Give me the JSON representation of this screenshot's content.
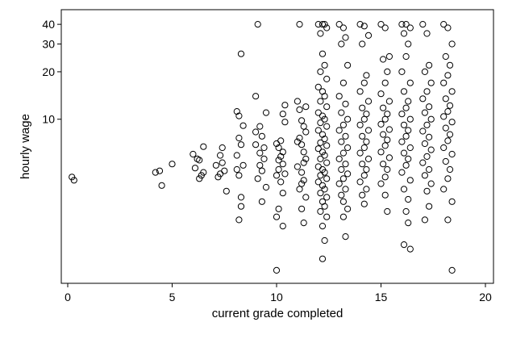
{
  "chart_data": {
    "type": "scatter",
    "xlabel": "current grade completed",
    "ylabel": "hourly wage",
    "xlim": [
      0,
      20
    ],
    "ylim": [
      1.0,
      42
    ],
    "y_scale": "log",
    "x_ticks": [
      0,
      5,
      10,
      15,
      20
    ],
    "y_ticks": [
      10,
      20,
      30,
      40
    ],
    "grid": false,
    "legend": "none",
    "marker": "hollow-circle",
    "colors": {
      "marker": "#000000",
      "background": "#ffffff",
      "axis": "#000000"
    },
    "points": [
      [
        0.2,
        4.3
      ],
      [
        0.3,
        4.1
      ],
      [
        4.2,
        4.6
      ],
      [
        4.4,
        4.7
      ],
      [
        4.5,
        3.8
      ],
      [
        5.0,
        5.2
      ],
      [
        6.0,
        6.0
      ],
      [
        6.1,
        4.9
      ],
      [
        6.2,
        5.6
      ],
      [
        6.3,
        4.2
      ],
      [
        6.4,
        4.4
      ],
      [
        6.5,
        6.7
      ],
      [
        6.3,
        5.5
      ],
      [
        6.5,
        4.6
      ],
      [
        7.1,
        5.1
      ],
      [
        7.2,
        4.3
      ],
      [
        7.3,
        5.9
      ],
      [
        7.4,
        6.6
      ],
      [
        7.5,
        4.7
      ],
      [
        7.6,
        3.5
      ],
      [
        7.4,
        5.3
      ],
      [
        7.3,
        4.5
      ],
      [
        8.1,
        11.2
      ],
      [
        8.2,
        10.5
      ],
      [
        8.3,
        26.0
      ],
      [
        8.2,
        7.6
      ],
      [
        8.3,
        6.9
      ],
      [
        8.1,
        5.9
      ],
      [
        8.4,
        5.1
      ],
      [
        8.2,
        4.4
      ],
      [
        8.3,
        3.2
      ],
      [
        8.2,
        2.3
      ],
      [
        8.3,
        2.8
      ],
      [
        8.4,
        9.1
      ],
      [
        8.1,
        4.8
      ],
      [
        9.0,
        14.0
      ],
      [
        9.1,
        40.0
      ],
      [
        9.2,
        9.0
      ],
      [
        9.3,
        7.8
      ],
      [
        9.0,
        6.9
      ],
      [
        9.2,
        6.1
      ],
      [
        9.4,
        5.6
      ],
      [
        9.3,
        4.7
      ],
      [
        9.1,
        4.2
      ],
      [
        9.5,
        3.7
      ],
      [
        9.3,
        3.0
      ],
      [
        9.2,
        5.1
      ],
      [
        9.4,
        6.6
      ],
      [
        9.0,
        8.3
      ],
      [
        9.5,
        11.0
      ],
      [
        10.0,
        7.0
      ],
      [
        10.1,
        6.6
      ],
      [
        10.2,
        5.8
      ],
      [
        10.3,
        5.2
      ],
      [
        10.1,
        4.8
      ],
      [
        10.0,
        4.4
      ],
      [
        10.2,
        4.0
      ],
      [
        10.3,
        3.4
      ],
      [
        10.1,
        2.7
      ],
      [
        10.0,
        1.1
      ],
      [
        10.4,
        9.6
      ],
      [
        10.3,
        10.8
      ],
      [
        10.4,
        12.3
      ],
      [
        10.2,
        7.3
      ],
      [
        10.4,
        4.5
      ],
      [
        10.1,
        5.5
      ],
      [
        10.3,
        6.2
      ],
      [
        10.0,
        2.4
      ],
      [
        10.3,
        2.1
      ],
      [
        11.0,
        13.0
      ],
      [
        11.1,
        11.5
      ],
      [
        11.2,
        9.8
      ],
      [
        11.3,
        9.0
      ],
      [
        11.4,
        8.3
      ],
      [
        11.1,
        7.6
      ],
      [
        11.2,
        6.9
      ],
      [
        11.3,
        6.2
      ],
      [
        11.4,
        5.6
      ],
      [
        11.0,
        5.0
      ],
      [
        11.2,
        4.6
      ],
      [
        11.3,
        4.1
      ],
      [
        11.1,
        3.6
      ],
      [
        11.4,
        3.2
      ],
      [
        11.2,
        2.7
      ],
      [
        11.3,
        2.2
      ],
      [
        11.1,
        40.0
      ],
      [
        11.4,
        12.0
      ],
      [
        11.0,
        7.2
      ],
      [
        11.3,
        5.3
      ],
      [
        11.2,
        3.9
      ],
      [
        12.0,
        40.0
      ],
      [
        12.2,
        40.0
      ],
      [
        12.3,
        40.0
      ],
      [
        12.1,
        35.0
      ],
      [
        12.4,
        38.0
      ],
      [
        12.2,
        26.0
      ],
      [
        12.3,
        22.0
      ],
      [
        12.1,
        20.0
      ],
      [
        12.4,
        18.0
      ],
      [
        12.0,
        16.0
      ],
      [
        12.2,
        15.0
      ],
      [
        12.3,
        14.0
      ],
      [
        12.1,
        13.0
      ],
      [
        12.4,
        12.0
      ],
      [
        12.0,
        11.0
      ],
      [
        12.2,
        10.5
      ],
      [
        12.3,
        10.0
      ],
      [
        12.1,
        9.5
      ],
      [
        12.4,
        9.0
      ],
      [
        12.0,
        8.5
      ],
      [
        12.2,
        8.0
      ],
      [
        12.3,
        7.5
      ],
      [
        12.1,
        7.1
      ],
      [
        12.4,
        6.8
      ],
      [
        12.0,
        6.5
      ],
      [
        12.2,
        6.2
      ],
      [
        12.3,
        5.9
      ],
      [
        12.1,
        5.6
      ],
      [
        12.4,
        5.3
      ],
      [
        12.0,
        5.0
      ],
      [
        12.2,
        4.8
      ],
      [
        12.3,
        4.6
      ],
      [
        12.1,
        4.4
      ],
      [
        12.4,
        4.2
      ],
      [
        12.0,
        4.0
      ],
      [
        12.2,
        3.8
      ],
      [
        12.3,
        3.6
      ],
      [
        12.1,
        3.4
      ],
      [
        12.4,
        3.2
      ],
      [
        12.2,
        3.0
      ],
      [
        12.3,
        2.8
      ],
      [
        12.1,
        2.6
      ],
      [
        12.4,
        2.4
      ],
      [
        12.2,
        2.1
      ],
      [
        12.3,
        1.7
      ],
      [
        12.2,
        1.3
      ],
      [
        13.0,
        40.0
      ],
      [
        13.2,
        38.0
      ],
      [
        13.1,
        30.0
      ],
      [
        13.3,
        33.0
      ],
      [
        13.4,
        22.0
      ],
      [
        13.2,
        17.0
      ],
      [
        13.0,
        14.0
      ],
      [
        13.3,
        12.5
      ],
      [
        13.1,
        11.0
      ],
      [
        13.4,
        10.0
      ],
      [
        13.2,
        9.2
      ],
      [
        13.0,
        8.5
      ],
      [
        13.3,
        7.8
      ],
      [
        13.1,
        7.2
      ],
      [
        13.4,
        6.6
      ],
      [
        13.2,
        6.1
      ],
      [
        13.0,
        5.6
      ],
      [
        13.3,
        5.2
      ],
      [
        13.1,
        4.8
      ],
      [
        13.4,
        4.5
      ],
      [
        13.2,
        4.2
      ],
      [
        13.0,
        3.9
      ],
      [
        13.3,
        3.6
      ],
      [
        13.1,
        3.3
      ],
      [
        13.2,
        3.0
      ],
      [
        13.4,
        2.7
      ],
      [
        13.2,
        2.4
      ],
      [
        13.3,
        1.8
      ],
      [
        14.0,
        40.0
      ],
      [
        14.2,
        39.0
      ],
      [
        14.4,
        34.0
      ],
      [
        14.1,
        30.0
      ],
      [
        14.3,
        19.0
      ],
      [
        14.2,
        17.0
      ],
      [
        14.0,
        15.0
      ],
      [
        14.4,
        13.0
      ],
      [
        14.1,
        11.8
      ],
      [
        14.3,
        10.8
      ],
      [
        14.2,
        10.0
      ],
      [
        14.0,
        9.2
      ],
      [
        14.4,
        8.5
      ],
      [
        14.1,
        7.8
      ],
      [
        14.3,
        7.2
      ],
      [
        14.2,
        6.6
      ],
      [
        14.0,
        6.1
      ],
      [
        14.4,
        5.6
      ],
      [
        14.1,
        5.2
      ],
      [
        14.3,
        4.8
      ],
      [
        14.2,
        4.4
      ],
      [
        14.0,
        4.0
      ],
      [
        14.3,
        3.6
      ],
      [
        14.1,
        3.3
      ],
      [
        14.2,
        2.9
      ],
      [
        15.0,
        40.0
      ],
      [
        15.2,
        38.0
      ],
      [
        15.4,
        25.0
      ],
      [
        15.1,
        24.0
      ],
      [
        15.3,
        20.0
      ],
      [
        15.2,
        17.0
      ],
      [
        15.0,
        14.5
      ],
      [
        15.4,
        13.0
      ],
      [
        15.1,
        11.8
      ],
      [
        15.3,
        10.8
      ],
      [
        15.2,
        10.0
      ],
      [
        15.0,
        9.3
      ],
      [
        15.4,
        8.6
      ],
      [
        15.1,
        8.0
      ],
      [
        15.3,
        7.4
      ],
      [
        15.2,
        6.8
      ],
      [
        15.0,
        6.2
      ],
      [
        15.4,
        5.7
      ],
      [
        15.1,
        5.2
      ],
      [
        15.3,
        4.8
      ],
      [
        15.2,
        4.3
      ],
      [
        15.0,
        3.9
      ],
      [
        15.2,
        3.3
      ],
      [
        15.3,
        2.6
      ],
      [
        16.0,
        40.0
      ],
      [
        16.2,
        40.0
      ],
      [
        16.4,
        38.0
      ],
      [
        16.1,
        35.0
      ],
      [
        16.3,
        30.0
      ],
      [
        16.2,
        25.0
      ],
      [
        16.0,
        20.0
      ],
      [
        16.4,
        17.0
      ],
      [
        16.1,
        15.0
      ],
      [
        16.3,
        13.0
      ],
      [
        16.2,
        11.8
      ],
      [
        16.0,
        10.8
      ],
      [
        16.4,
        10.0
      ],
      [
        16.1,
        9.2
      ],
      [
        16.3,
        8.5
      ],
      [
        16.2,
        7.8
      ],
      [
        16.0,
        7.2
      ],
      [
        16.4,
        6.6
      ],
      [
        16.1,
        6.1
      ],
      [
        16.3,
        5.6
      ],
      [
        16.2,
        5.1
      ],
      [
        16.0,
        4.6
      ],
      [
        16.4,
        4.1
      ],
      [
        16.1,
        3.6
      ],
      [
        16.3,
        3.1
      ],
      [
        16.2,
        2.6
      ],
      [
        16.3,
        2.2
      ],
      [
        16.1,
        1.6
      ],
      [
        16.4,
        1.5
      ],
      [
        17.0,
        40.0
      ],
      [
        17.2,
        35.0
      ],
      [
        17.3,
        22.0
      ],
      [
        17.1,
        20.0
      ],
      [
        17.4,
        17.0
      ],
      [
        17.2,
        15.0
      ],
      [
        17.0,
        13.5
      ],
      [
        17.3,
        12.0
      ],
      [
        17.1,
        11.0
      ],
      [
        17.4,
        10.0
      ],
      [
        17.2,
        9.2
      ],
      [
        17.0,
        8.4
      ],
      [
        17.3,
        7.7
      ],
      [
        17.1,
        7.0
      ],
      [
        17.4,
        6.4
      ],
      [
        17.2,
        5.8
      ],
      [
        17.0,
        5.3
      ],
      [
        17.3,
        4.8
      ],
      [
        17.1,
        4.4
      ],
      [
        17.4,
        3.9
      ],
      [
        17.2,
        3.5
      ],
      [
        17.3,
        2.8
      ],
      [
        17.1,
        2.3
      ],
      [
        18.0,
        40.0
      ],
      [
        18.2,
        38.0
      ],
      [
        18.4,
        30.0
      ],
      [
        18.1,
        25.0
      ],
      [
        18.3,
        22.0
      ],
      [
        18.2,
        19.0
      ],
      [
        18.0,
        17.0
      ],
      [
        18.4,
        15.0
      ],
      [
        18.1,
        13.5
      ],
      [
        18.3,
        12.2
      ],
      [
        18.2,
        11.2
      ],
      [
        18.0,
        10.4
      ],
      [
        18.4,
        9.6
      ],
      [
        18.1,
        8.8
      ],
      [
        18.3,
        8.0
      ],
      [
        18.2,
        7.3
      ],
      [
        18.0,
        6.6
      ],
      [
        18.4,
        6.0
      ],
      [
        18.1,
        5.4
      ],
      [
        18.3,
        4.8
      ],
      [
        18.2,
        4.2
      ],
      [
        18.0,
        3.6
      ],
      [
        18.4,
        3.0
      ],
      [
        18.2,
        2.3
      ],
      [
        18.4,
        1.1
      ]
    ]
  }
}
